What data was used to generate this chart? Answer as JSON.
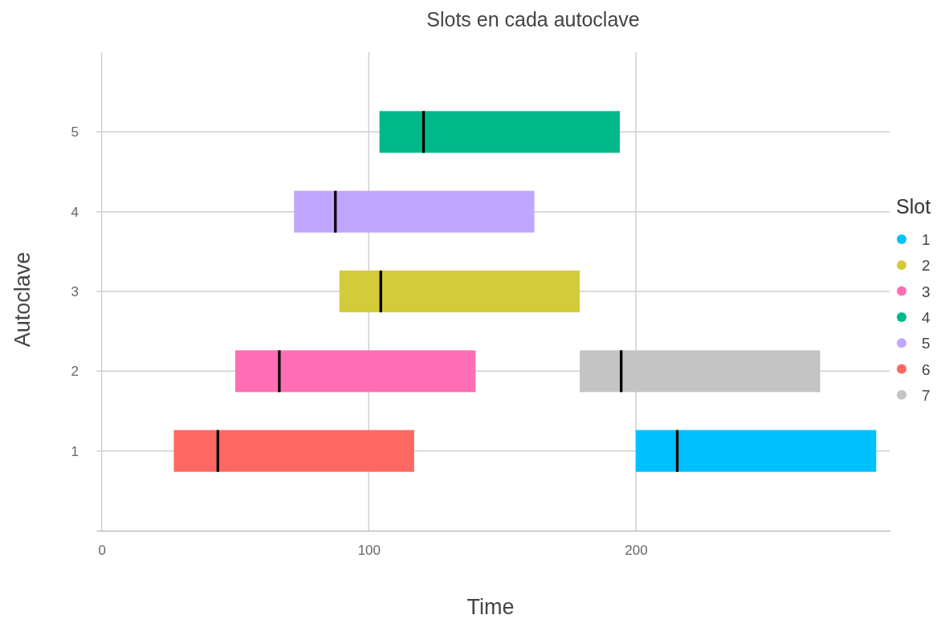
{
  "chart_data": {
    "type": "bar",
    "orientation": "horizontal",
    "title": "Slots en cada autoclave",
    "xlabel": "Time",
    "ylabel": "Autoclave",
    "legend_title": "Slot",
    "legend": "right",
    "grid": true,
    "categories": [
      "5",
      "4",
      "3",
      "2",
      "1"
    ],
    "xlim": [
      -2,
      295
    ],
    "xticks": [
      0,
      100,
      200
    ],
    "series": [
      {
        "name": "1",
        "color": "#00c0ff",
        "base": [
          null,
          null,
          null,
          null,
          200
        ],
        "values": [
          null,
          null,
          null,
          null,
          90
        ]
      },
      {
        "name": "2",
        "color": "#d4cb3a",
        "base": [
          null,
          null,
          89,
          null,
          null
        ],
        "values": [
          null,
          null,
          90,
          null,
          null
        ]
      },
      {
        "name": "3",
        "color": "#ff6eb4",
        "base": [
          null,
          null,
          null,
          50,
          null
        ],
        "values": [
          null,
          null,
          null,
          90,
          null
        ]
      },
      {
        "name": "4",
        "color": "#00b98a",
        "base": [
          104,
          null,
          null,
          null,
          null
        ],
        "values": [
          90,
          null,
          null,
          null,
          null
        ]
      },
      {
        "name": "5",
        "color": "#c0a6ff",
        "base": [
          null,
          72,
          null,
          null,
          null
        ],
        "values": [
          null,
          90,
          null,
          null,
          null
        ]
      },
      {
        "name": "6",
        "color": "#ff6862",
        "base": [
          null,
          null,
          null,
          null,
          27
        ],
        "values": [
          null,
          null,
          null,
          null,
          90
        ]
      },
      {
        "name": "7",
        "color": "#c4c4c4",
        "base": [
          null,
          null,
          null,
          179,
          null
        ],
        "values": [
          null,
          null,
          null,
          90,
          null
        ]
      },
      {
        "color": "#000000",
        "base": [
          120,
          87,
          104,
          66,
          43
        ],
        "values": [
          1,
          1,
          1,
          1,
          1
        ]
      },
      {
        "color": "#000000",
        "base": [
          null,
          null,
          null,
          194,
          215
        ],
        "values": [
          null,
          null,
          null,
          1,
          1
        ]
      }
    ]
  }
}
